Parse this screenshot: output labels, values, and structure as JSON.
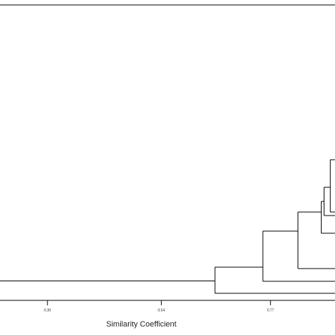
{
  "chart_data": {
    "type": "dendrogram",
    "x_label": "Similarity Coefficient",
    "xlim": [
      0.2,
      0.906
    ],
    "xticks": [
      {
        "value": 0.3,
        "label": "0.30"
      },
      0.54,
      0.77
    ],
    "merges": [
      0.896,
      0.883,
      0.877,
      0.828,
      0.754,
      0.653
    ]
  }
}
